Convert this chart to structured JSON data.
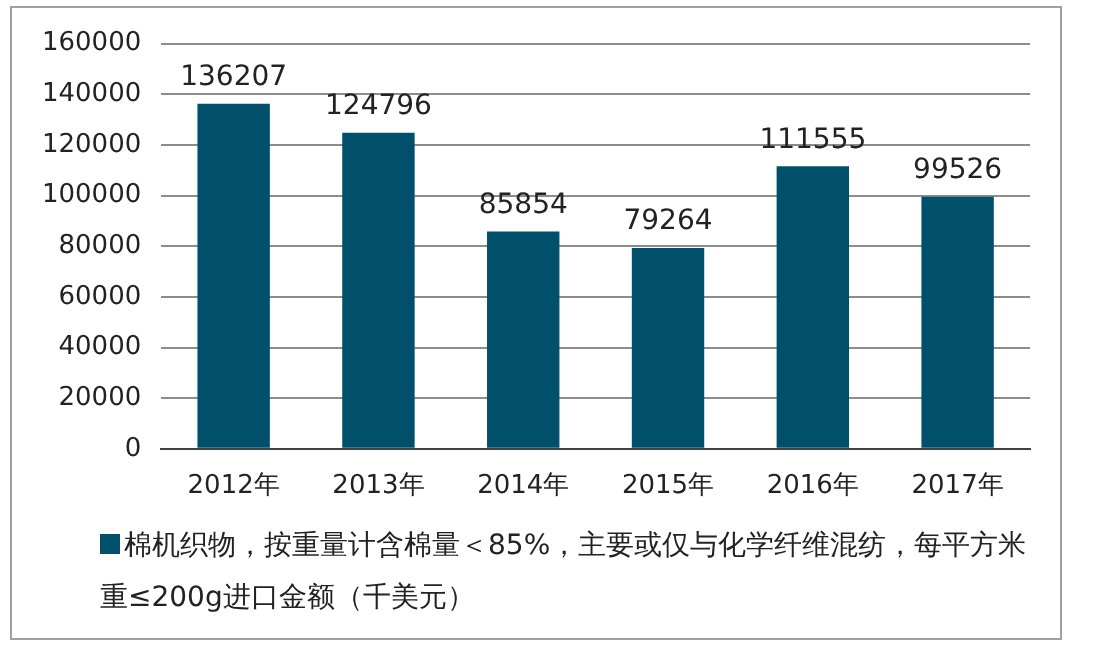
{
  "chart_data": {
    "type": "bar",
    "categories": [
      "2012年",
      "2013年",
      "2014年",
      "2015年",
      "2016年",
      "2017年"
    ],
    "series": [
      {
        "name": "棉机织物，按重量计含棉量＜85%，主要或仅与化学纤维混纺，每平方米重≤200g进口金额（千美元）",
        "color": "#004f6b",
        "values": [
          136207,
          124796,
          85854,
          79264,
          111555,
          99526
        ]
      }
    ],
    "ylim": [
      0,
      160000
    ],
    "yticks": [
      0,
      20000,
      40000,
      60000,
      80000,
      100000,
      120000,
      140000,
      160000
    ],
    "grid": "y",
    "legend": "bottom",
    "data_labels": true
  }
}
